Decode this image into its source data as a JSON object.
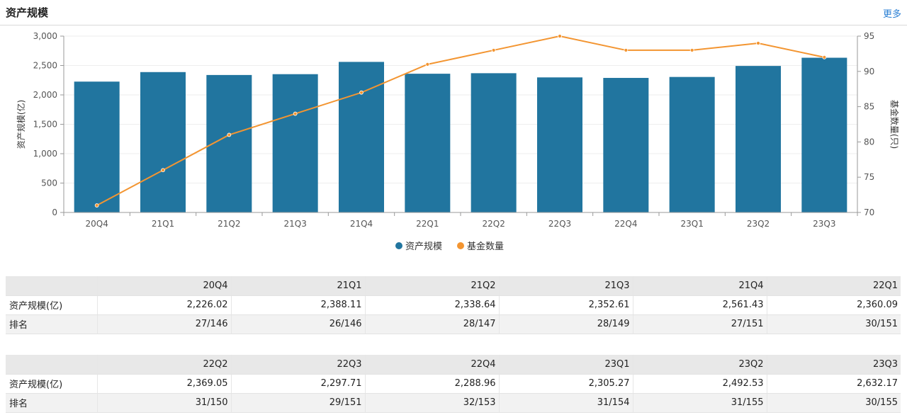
{
  "header": {
    "title": "资产规模",
    "more_label": "更多"
  },
  "chart_data": {
    "type": "bar+line",
    "categories": [
      "20Q4",
      "21Q1",
      "21Q2",
      "21Q3",
      "21Q4",
      "22Q1",
      "22Q2",
      "22Q3",
      "22Q4",
      "23Q1",
      "23Q2",
      "23Q3"
    ],
    "series": [
      {
        "name": "资产规模",
        "type": "bar",
        "axis": "left",
        "values": [
          2226.02,
          2388.11,
          2338.64,
          2352.61,
          2561.43,
          2360.09,
          2369.05,
          2297.71,
          2288.96,
          2305.27,
          2492.53,
          2632.17
        ]
      },
      {
        "name": "基金数量",
        "type": "line",
        "axis": "right",
        "values": [
          71,
          76,
          81,
          84,
          87,
          91,
          93,
          95,
          93,
          93,
          94,
          92
        ]
      }
    ],
    "ylabel": "资产规模(亿)",
    "y2label": "基金数量(只)",
    "ylim": [
      0,
      3000
    ],
    "yticks": [
      "0",
      "500",
      "1,000",
      "1,500",
      "2,000",
      "2,500",
      "3,000"
    ],
    "y2lim": [
      70,
      95
    ],
    "y2ticks": [
      "70",
      "75",
      "80",
      "85",
      "90",
      "95"
    ],
    "legend_position": "bottom-center",
    "colors": {
      "bar": "#21759f",
      "line": "#f39531"
    }
  },
  "tables": [
    {
      "columns": [
        "",
        "20Q4",
        "21Q1",
        "21Q2",
        "21Q3",
        "21Q4",
        "22Q1"
      ],
      "rows": [
        {
          "label": "资产规模(亿)",
          "values": [
            "2,226.02",
            "2,388.11",
            "2,338.64",
            "2,352.61",
            "2,561.43",
            "2,360.09"
          ]
        },
        {
          "label": "排名",
          "values": [
            "27/146",
            "26/146",
            "28/147",
            "28/149",
            "27/151",
            "30/151"
          ]
        }
      ]
    },
    {
      "columns": [
        "",
        "22Q2",
        "22Q3",
        "22Q4",
        "23Q1",
        "23Q2",
        "23Q3"
      ],
      "rows": [
        {
          "label": "资产规模(亿)",
          "values": [
            "2,369.05",
            "2,297.71",
            "2,288.96",
            "2,305.27",
            "2,492.53",
            "2,632.17"
          ]
        },
        {
          "label": "排名",
          "values": [
            "31/150",
            "29/151",
            "32/153",
            "31/154",
            "31/155",
            "30/155"
          ]
        }
      ]
    }
  ]
}
